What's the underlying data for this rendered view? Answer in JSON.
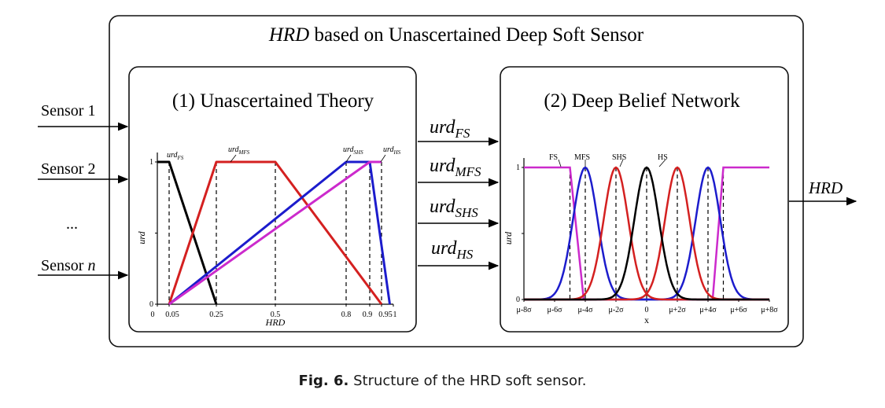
{
  "outer_title": {
    "italic": "HRD",
    "rest": " based on Unascertained Deep Soft Sensor"
  },
  "sensors": [
    "Sensor 1",
    "Sensor 2",
    "...",
    "Sensor n"
  ],
  "sensor_n_prefix": "Sensor ",
  "sensor_n_italic": "n",
  "panel1": {
    "title": "(1) Unascertained Theory",
    "y_label": "urd",
    "x_label": "HRD",
    "x_ticks": [
      "0",
      "0.05",
      "0.25",
      "0.5",
      "0.8",
      "0.9",
      "0.95",
      "1"
    ],
    "y_ticks": [
      "0",
      "1"
    ],
    "curve_labels": [
      {
        "base": "urd",
        "sub": "FS"
      },
      {
        "base": "urd",
        "sub": "MFS"
      },
      {
        "base": "urd",
        "sub": "SHS"
      },
      {
        "base": "urd",
        "sub": "HS"
      }
    ]
  },
  "connections": [
    {
      "base": "urd",
      "sub": "FS"
    },
    {
      "base": "urd",
      "sub": "MFS"
    },
    {
      "base": "urd",
      "sub": "SHS"
    },
    {
      "base": "urd",
      "sub": "HS"
    }
  ],
  "panel2": {
    "title": "(2) Deep Belief Network",
    "y_label": "urd",
    "x_label": "x",
    "x_ticks": [
      "μ-8σ",
      "μ-6σ",
      "μ-4σ",
      "μ-2σ",
      "0",
      "μ+2σ",
      "μ+4σ",
      "μ+6σ",
      "μ+8σ"
    ],
    "y_ticks": [
      "0",
      "1"
    ],
    "curve_labels": [
      "FS",
      "MFS",
      "SHS",
      "HS"
    ]
  },
  "output_label": "HRD",
  "caption": {
    "fig": "Fig. 6.",
    "text": "Structure of the HRD soft sensor."
  },
  "colors": {
    "black": "#000000",
    "red": "#d42020",
    "blue": "#1c1ccc",
    "magenta": "#cc2acc"
  }
}
